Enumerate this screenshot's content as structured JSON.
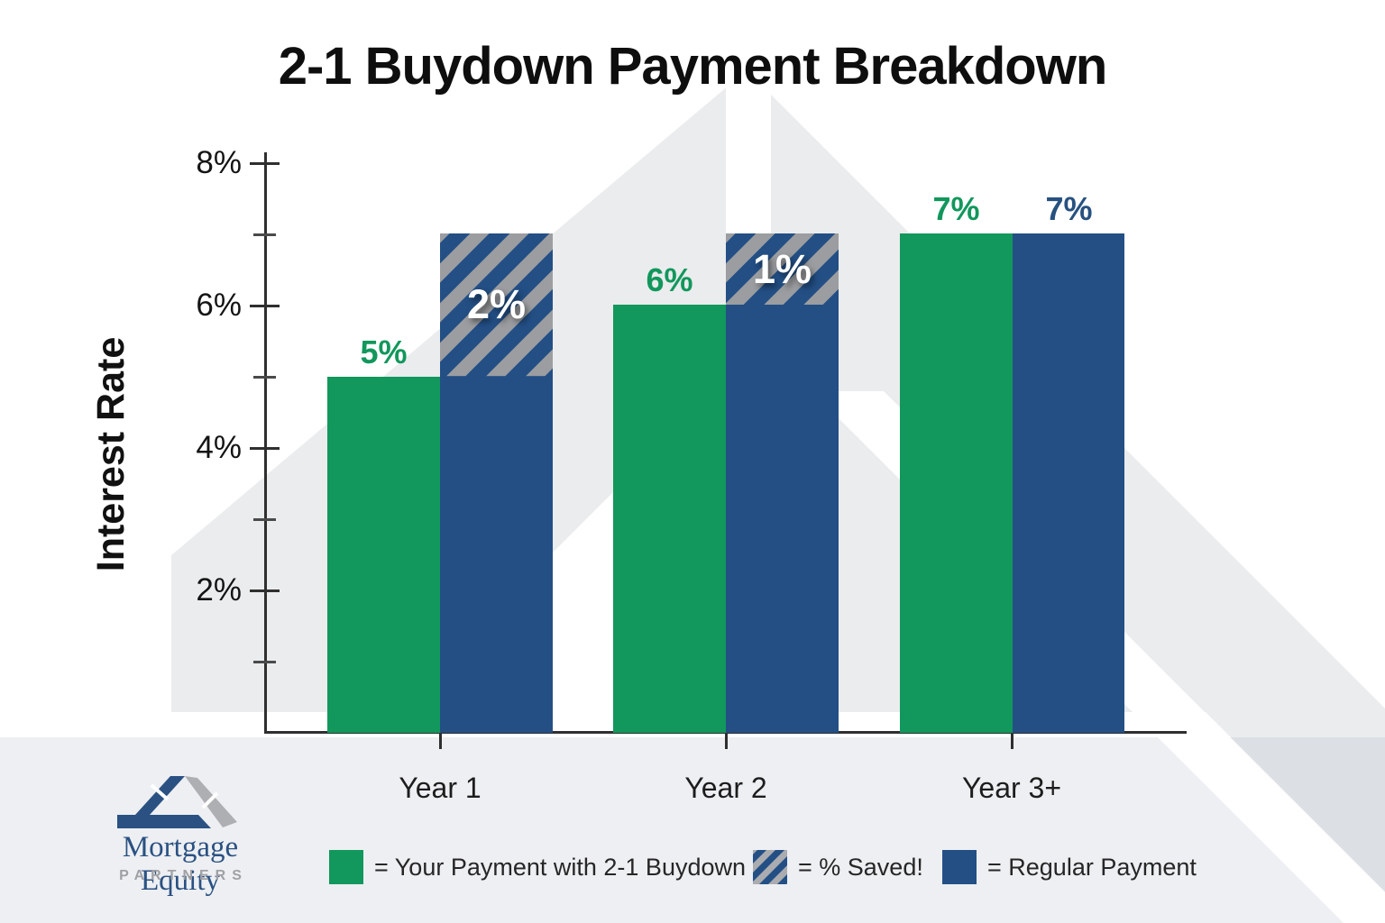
{
  "title": "2-1 Buydown Payment Breakdown",
  "y_axis": {
    "label": "Interest Rate",
    "tick_labels": [
      "8%",
      "6%",
      "4%",
      "2%"
    ]
  },
  "chart_data": {
    "type": "bar",
    "categories": [
      "Year 1",
      "Year 2",
      "Year 3+"
    ],
    "series": [
      {
        "name": "Your Payment with 2-1 Buydown",
        "color": "#12975C",
        "values": [
          5,
          6,
          7
        ]
      },
      {
        "name": "Regular Payment",
        "color": "#234F85",
        "values": [
          7,
          7,
          7
        ]
      },
      {
        "name": "% Saved!",
        "style": "hatched",
        "colors": [
          "#234F85",
          "#9B9DA0"
        ],
        "values": [
          2,
          1,
          0
        ]
      }
    ],
    "value_labels": {
      "buydown": [
        "5%",
        "6%",
        "7%"
      ],
      "regular": "7%",
      "saved": [
        "2%",
        "1%"
      ]
    },
    "ylabel": "Interest Rate",
    "ylim": [
      0,
      8
    ],
    "yticks": [
      2,
      4,
      6,
      8
    ],
    "ytick_format": "percent",
    "grid": false,
    "legend_position": "bottom"
  },
  "legend": {
    "items": [
      {
        "label": "= Your Payment with 2-1 Buydown",
        "swatch": "green"
      },
      {
        "label": "= % Saved!",
        "swatch": "hatched"
      },
      {
        "label": "= Regular Payment",
        "swatch": "blue"
      }
    ]
  },
  "logo": {
    "name": "Mortgage Equity",
    "sub": "PARTNERS"
  },
  "colors": {
    "buydown_green": "#12975C",
    "regular_blue": "#234F85",
    "hatch_gray": "#9B9DA0",
    "saved_label": "#FFFFFF",
    "footer_band": "#EDEFF2",
    "watermark_gray": "#ECEEF0",
    "logo_blue": "#2A5182",
    "logo_gray": "#A6A8AB",
    "axis": "#2F2F2F"
  }
}
